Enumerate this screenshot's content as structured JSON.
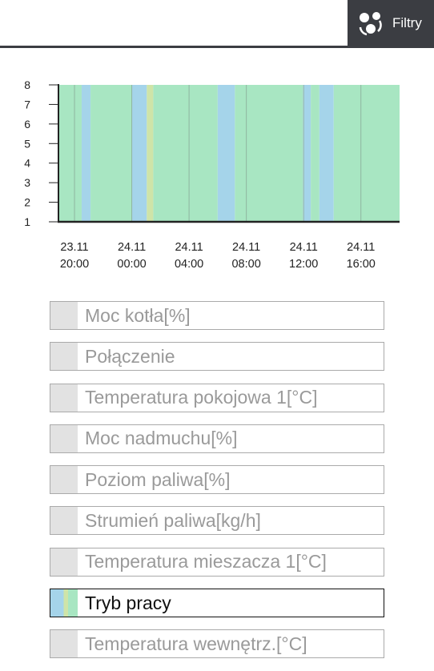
{
  "header": {
    "filter_label": "Filtry",
    "accent": "#3b3d42"
  },
  "chart_data": {
    "type": "area",
    "y_ticks": [
      "1",
      "2",
      "3",
      "4",
      "5",
      "6",
      "7",
      "8"
    ],
    "ylim": [
      1,
      8
    ],
    "x_ticks": [
      {
        "date": "23.11",
        "time": "20:00"
      },
      {
        "date": "24.11",
        "time": "00:00"
      },
      {
        "date": "24.11",
        "time": "04:00"
      },
      {
        "date": "24.11",
        "time": "08:00"
      },
      {
        "date": "24.11",
        "time": "12:00"
      },
      {
        "date": "24.11",
        "time": "16:00"
      }
    ],
    "series_colors": {
      "green": "#a8e6c2",
      "blue": "#a5d4ea",
      "yellow": "#cfe4a8"
    },
    "x_range_hours": [
      -1.12,
      22.7
    ],
    "segments": [
      {
        "start": -1.12,
        "end": 0.5,
        "color": "green"
      },
      {
        "start": 0.5,
        "end": 1.12,
        "color": "blue"
      },
      {
        "start": 1.12,
        "end": 4.02,
        "color": "green"
      },
      {
        "start": 4.02,
        "end": 5.05,
        "color": "blue"
      },
      {
        "start": 5.05,
        "end": 5.5,
        "color": "yellow"
      },
      {
        "start": 5.5,
        "end": 10.0,
        "color": "green"
      },
      {
        "start": 10.0,
        "end": 11.2,
        "color": "blue"
      },
      {
        "start": 11.2,
        "end": 15.95,
        "color": "green"
      },
      {
        "start": 15.95,
        "end": 16.5,
        "color": "blue"
      },
      {
        "start": 16.5,
        "end": 17.1,
        "color": "green"
      },
      {
        "start": 17.1,
        "end": 18.1,
        "color": "blue"
      },
      {
        "start": 18.1,
        "end": 22.7,
        "color": "green"
      }
    ],
    "grid": true
  },
  "legend": [
    {
      "label": "Moc kotła[%]",
      "active": false
    },
    {
      "label": "Połączenie",
      "active": false
    },
    {
      "label": "Temperatura pokojowa 1[°C]",
      "active": false
    },
    {
      "label": "Moc nadmuchu[%]",
      "active": false
    },
    {
      "label": "Poziom paliwa[%]",
      "active": false
    },
    {
      "label": "Strumień paliwa[kg/h]",
      "active": false
    },
    {
      "label": "Temperatura mieszacza 1[°C]",
      "active": false
    },
    {
      "label": "Tryb pracy",
      "active": true
    },
    {
      "label": "Temperatura wewnętrz.[°C]",
      "active": false
    }
  ]
}
